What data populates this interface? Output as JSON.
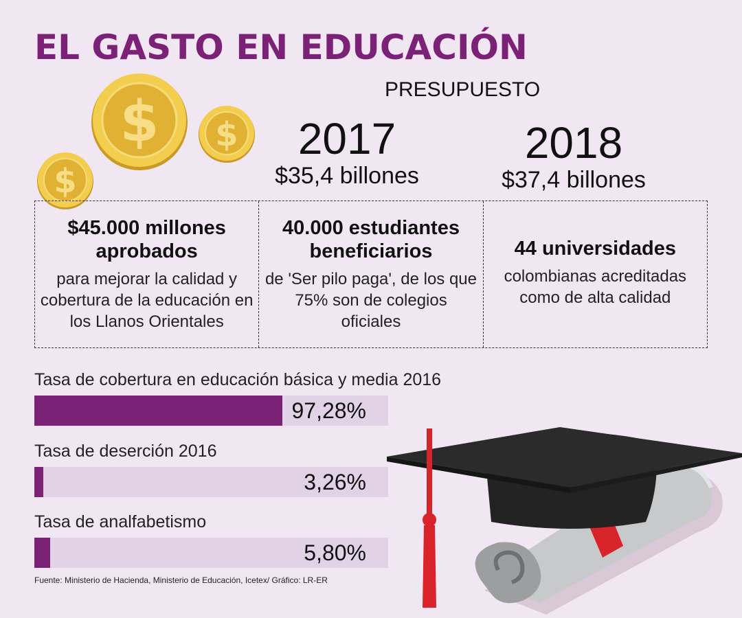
{
  "title": "EL GASTO EN EDUCACIÓN",
  "presupuesto": {
    "label": "PRESUPUESTO",
    "years": [
      {
        "year": "2017",
        "amount": "$35,4 billones"
      },
      {
        "year": "2018",
        "amount": "$37,4 billones"
      }
    ]
  },
  "boxes": [
    {
      "head": "$45.000 millones aprobados",
      "desc": "para mejorar la calidad y cobertura de la educación en los Llanos Orientales"
    },
    {
      "head": "40.000 estudiantes beneficiarios",
      "desc": "de 'Ser pilo paga', de los que 75% son de colegios oficiales"
    },
    {
      "head": "44 universidades",
      "desc": "colombianas acreditadas como de alta calidad"
    }
  ],
  "stats": [
    {
      "label": "Tasa de cobertura en educación básica y media 2016",
      "value_text": "97,28%",
      "fill_fraction": 0.7
    },
    {
      "label": "Tasa de deserción 2016",
      "value_text": "3,26%",
      "fill_fraction": 0.025
    },
    {
      "label": "Tasa de analfabetismo",
      "value_text": "5,80%",
      "fill_fraction": 0.045
    }
  ],
  "source": "Fuente: Ministerio de Hacienda, Ministerio de Educación, Icetex/ Gráfico: LR-ER",
  "colors": {
    "accent": "#7b2277",
    "bar_bg": "#e2d2e6",
    "background": "#f1e7f2",
    "coin": "#e8bf3a",
    "tassel": "#d8232a"
  },
  "icons": [
    "dollar-coin-icon",
    "graduation-cap-icon",
    "diploma-scroll-icon"
  ]
}
